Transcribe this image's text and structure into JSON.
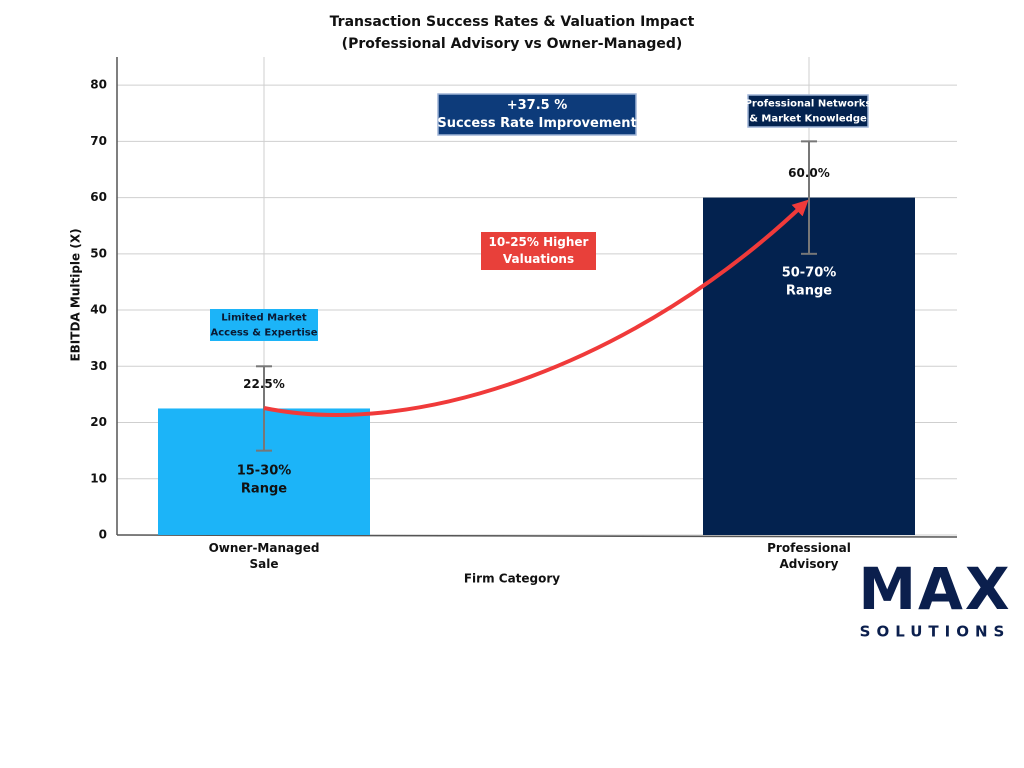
{
  "chart_data": {
    "type": "bar",
    "title": "Transaction Success Rates & Valuation Impact",
    "subtitle": "(Professional Advisory vs Owner-Managed)",
    "x_label": "Firm Category",
    "y_label": "EBITDA Multiple (X)",
    "categories": [
      "Owner-Managed Sale",
      "Professional Advisory"
    ],
    "values": [
      22.5,
      60
    ],
    "value_labels": [
      "22.5%",
      "60.0%"
    ],
    "errors": [
      7.5,
      10
    ],
    "colors": [
      "#1cb4f8",
      "#03224f"
    ],
    "ylim": [
      0,
      85
    ],
    "yticks": [
      0,
      10,
      20,
      30,
      40,
      50,
      60,
      70,
      80
    ],
    "grid": true,
    "annotations": [
      {
        "text": [
          "+37.5 %",
          "Success Rate Improvement"
        ]
      },
      {
        "text": [
          "Professional Networks",
          "& Market Knowledge"
        ]
      },
      {
        "text": [
          "Limited Market",
          "Access & Expertise"
        ]
      },
      {
        "text": [
          "10-25% Higher",
          "Valuations"
        ]
      },
      {
        "text": [
          "15-30%",
          "Range"
        ]
      },
      {
        "text": [
          "50-70%",
          "Range"
        ]
      }
    ],
    "logo": {
      "text": "MAX",
      "subtext": "SOLUTIONS"
    }
  }
}
